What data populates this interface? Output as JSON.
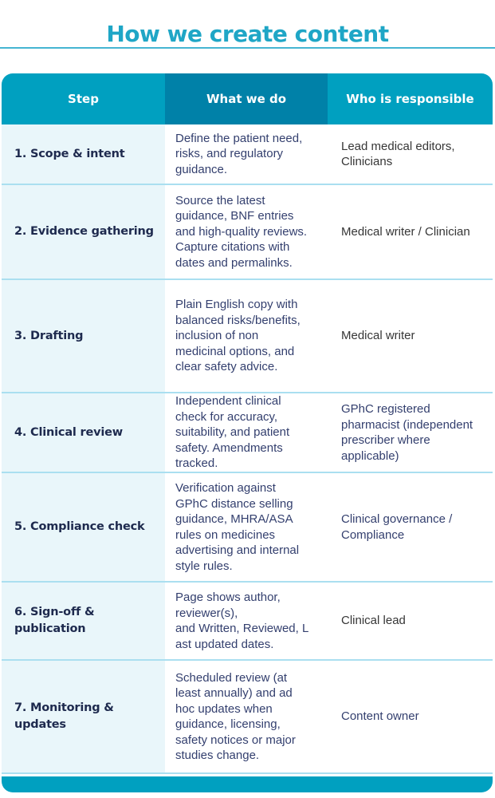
{
  "title": {
    "text": "How we create content"
  },
  "table": {
    "headers": [
      {
        "label": "Step"
      },
      {
        "label": "What we do"
      },
      {
        "label": "Who is responsible"
      }
    ],
    "rows": [
      {
        "step": "1. Scope & intent",
        "what": "Define the patient need,\nrisks, and regulatory\nguidance.",
        "who": "Lead medical editors,\nClinicians",
        "who_color": "dark"
      },
      {
        "step": "2. Evidence gathering",
        "what": "Source the latest\nguidance, BNF entries\nand high-quality reviews.\nCapture citations with\ndates and permalinks.",
        "who": "Medical writer / Clinician",
        "who_color": "dark"
      },
      {
        "step": "3. Drafting",
        "what": "Plain English copy with\nbalanced risks/benefits,\ninclusion of non\nmedicinal options, and\nclear safety advice.",
        "who": "Medical writer",
        "who_color": "dark"
      },
      {
        "step": "4. Clinical review",
        "what": "Independent clinical\ncheck for accuracy,\nsuitability, and patient\nsafety. Amendments\ntracked.",
        "who": "GPhC registered\npharmacist (independent\nprescriber where\napplicable)",
        "who_color": "navy"
      },
      {
        "step": "5. Compliance check",
        "what": "Verification against\nGPhC distance selling\nguidance, MHRA/ASA\nrules on medicines\nadvertising and internal\nstyle rules.",
        "who": "Clinical governance /\nCompliance",
        "who_color": "navy"
      },
      {
        "step": "6. Sign-off &\npublication",
        "what": "Page shows author,\nreviewer(s),\nand Written, Reviewed, L\nast updated dates.",
        "who": "Clinical lead",
        "who_color": "dark"
      },
      {
        "step": "7. Monitoring &\nupdates",
        "what": "Scheduled review (at\nleast annually) and ad\nhoc updates when\nguidance, licensing,\nsafety notices or major\nstudies change.",
        "who": "Content owner",
        "who_color": "navy"
      }
    ]
  },
  "colors": {
    "title_text": "#1fa6c6",
    "title_line": "#45b5d2",
    "header_bg": "#00a0c0",
    "header_mid_bg": "#0081a8",
    "header_text": "#ffffff",
    "step_col_bg": "#e9f6fa",
    "step_text": "#1e2a4e",
    "what_text": "#333f6e",
    "separator": "#aadff0",
    "footer_bar": "#00a0c0"
  }
}
